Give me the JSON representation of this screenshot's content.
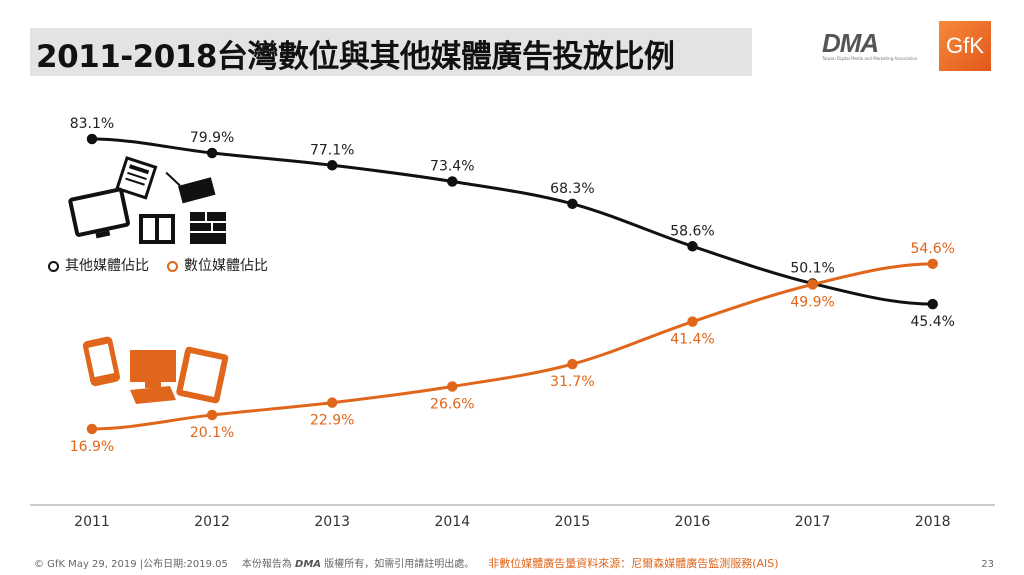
{
  "header": {
    "title": "2011-2018台灣數位與其他媒體廣告投放比例",
    "logo_dma": "DMA",
    "logo_dma_sub": "Taiwan Digital Media and Marketing Association",
    "logo_gfk": "GfK"
  },
  "colors": {
    "other": "#111111",
    "digital": "#e0661b"
  },
  "chart_data": {
    "type": "line",
    "categories": [
      "2011",
      "2012",
      "2013",
      "2014",
      "2015",
      "2016",
      "2017",
      "2018"
    ],
    "series": [
      {
        "name": "其他媒體佔比",
        "values": [
          83.1,
          79.9,
          77.1,
          73.4,
          68.3,
          58.6,
          50.1,
          45.4
        ],
        "labels": [
          "83.1%",
          "79.9%",
          "77.1%",
          "73.4%",
          "68.3%",
          "58.6%",
          "50.1%",
          "45.4%"
        ]
      },
      {
        "name": "數位媒體佔比",
        "values": [
          16.9,
          20.1,
          22.9,
          26.6,
          31.7,
          41.4,
          49.9,
          54.6
        ],
        "labels": [
          "16.9%",
          "20.1%",
          "22.9%",
          "26.6%",
          "31.7%",
          "41.4%",
          "49.9%",
          "54.6%"
        ]
      }
    ],
    "legend": "left-middle",
    "grid": false
  },
  "footer": {
    "left": "© GfK May 29, 2019 |公布日期:2019.05",
    "mid": "本份報告為",
    "mid_logo": "DMA",
    "mid2": "版權所有，如需引用請註明出處。",
    "source": "非數位媒體廣告量資料來源：尼爾森媒體廣告監測服務(AIS)",
    "page": "23"
  }
}
